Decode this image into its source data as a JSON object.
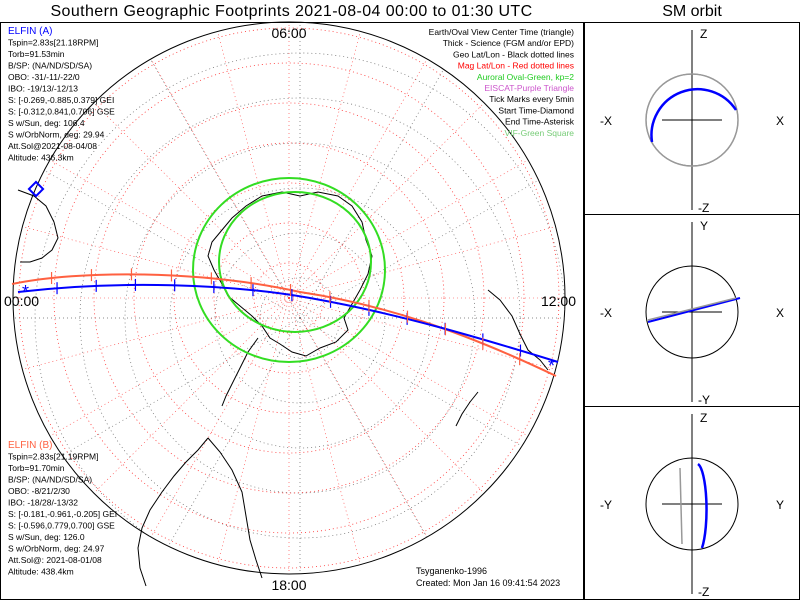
{
  "title": "Southern Geographic Footprints 2021-08-04 00:00 to 01:30 UTC",
  "orbit_title": "SM orbit",
  "time_labels": {
    "top": "06:00",
    "left": "00:00",
    "right": "12:00",
    "bottom": "18:00"
  },
  "legend": [
    {
      "text": "Earth/Oval View Center Time (triangle)",
      "color": "#000000"
    },
    {
      "text": "Thick - Science (FGM and/or EPD)",
      "color": "#000000"
    },
    {
      "text": "Geo Lat/Lon - Black dotted lines",
      "color": "#000000"
    },
    {
      "text": "Mag Lat/Lon - Red dotted lines",
      "color": "#ff0000"
    },
    {
      "text": "Auroral Oval-Green, kp=2",
      "color": "#22cc22"
    },
    {
      "text": "EISCAT-Purple Triangle",
      "color": "#cc55cc"
    },
    {
      "text": "Tick Marks every 5min",
      "color": "#000000"
    },
    {
      "text": "Start Time-Diamond",
      "color": "#000000"
    },
    {
      "text": "End Time-Asterisk",
      "color": "#000000"
    },
    {
      "text": "VIF-Green Square",
      "color": "#77cc77"
    }
  ],
  "elfin_a": {
    "name": "ELFIN (A)",
    "color": "#0000ff",
    "lines": [
      "Tspin=2.83s[21.18RPM]",
      "Torb=91.53min",
      "B/SP: (NA/ND/SD/SA)",
      "OBO: -31/-11/-22/0",
      "IBO: -19/13/-12/13",
      "S: [-0.269,-0.885,0.379] GEI",
      "S: [-0.312,0.841,0.706] GSE",
      "S w/Sun, deg: 106.4",
      "S w/OrbNorm, deg: 29.94",
      "Att.Sol@2021-08-04/08",
      "Altitude: 436.3km"
    ]
  },
  "elfin_b": {
    "name": "ELFIN (B)",
    "color": "#ff6040",
    "lines": [
      "Tspin=2.83s[21.19RPM]",
      "Torb=91.70min",
      "B/SP: (NA/ND/SD/SA)",
      "OBO: -8/21/2/30",
      "IBO: -18/28/-13/32",
      "S: [-0.181,-0.961,-0.205] GEI",
      "S: [-0.596,0.779,0.700] GSE",
      "S w/Sun, deg: 126.0",
      "S w/OrbNorm, deg: 24.97",
      "Att.Sol@: 2021-08-01/08",
      "Altitude: 438.4km"
    ]
  },
  "credit": "Tsyganenko-1996",
  "created": "Created: Mon Jan 16 09:41:54 2023",
  "orbit_panels": [
    {
      "top": "Z",
      "bottom": "-Z",
      "left": "-X",
      "right": "X"
    },
    {
      "top": "Y",
      "bottom": "-Y",
      "left": "-X",
      "right": "X"
    },
    {
      "top": "Z",
      "bottom": "-Z",
      "left": "-Y",
      "right": "Y"
    }
  ]
}
